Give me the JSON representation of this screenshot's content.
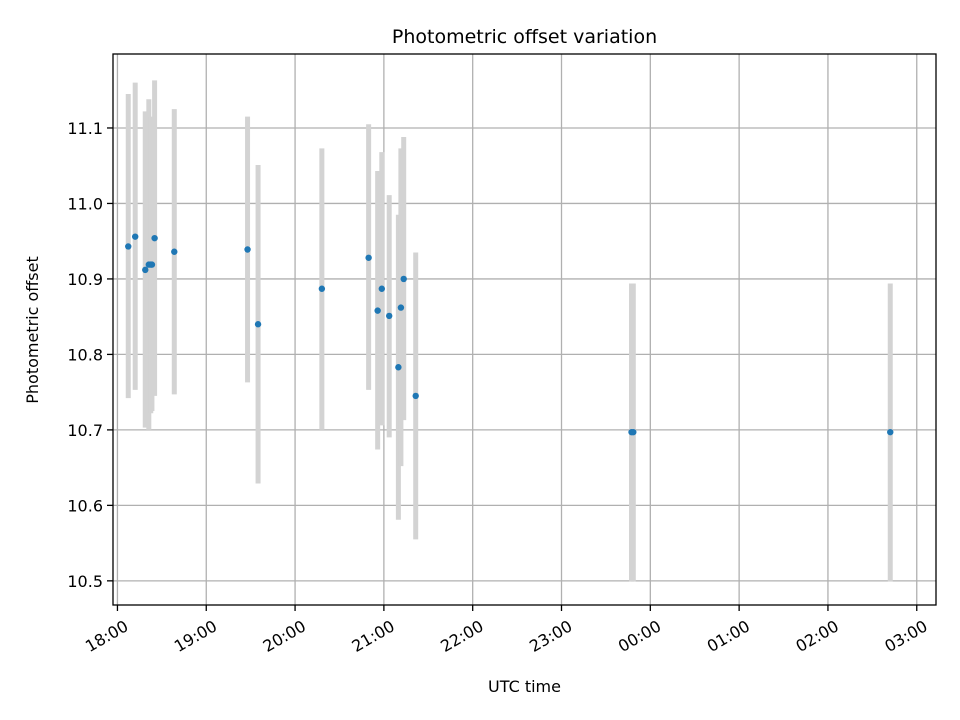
{
  "chart_data": {
    "type": "scatter",
    "title": "Photometric offset variation",
    "xlabel": "UTC time",
    "ylabel": "Photometric offset",
    "grid": true,
    "legend": "none",
    "x_axis_kind": "time",
    "xlim": [
      "18:00",
      "03:00"
    ],
    "xlim_minutes": [
      1077,
      1633
    ],
    "ylim": [
      10.468,
      11.198
    ],
    "x_ticks": [
      "18:00",
      "19:00",
      "20:00",
      "21:00",
      "22:00",
      "23:00",
      "00:00",
      "01:00",
      "02:00",
      "03:00"
    ],
    "x_tick_minutes": [
      1080,
      1140,
      1200,
      1260,
      1320,
      1380,
      1440,
      1500,
      1560,
      1620
    ],
    "y_ticks": [
      "10.5",
      "10.6",
      "10.7",
      "10.8",
      "10.9",
      "11.0",
      "11.1"
    ],
    "y_tick_values": [
      10.5,
      10.6,
      10.7,
      10.8,
      10.9,
      11.0,
      11.1
    ],
    "colors": {
      "point": "#1f77b4",
      "errorbar": "#d3d3d3",
      "grid": "#b0b0b0",
      "axes": "#000000"
    },
    "series": [
      {
        "points": [
          {
            "x": "18:07",
            "x_minutes": 1087.3,
            "y": 10.943,
            "err_low": 10.742,
            "err_high": 11.145
          },
          {
            "x": "18:12",
            "x_minutes": 1092.0,
            "y": 10.956,
            "err_low": 10.753,
            "err_high": 11.16
          },
          {
            "x": "18:19",
            "x_minutes": 1098.8,
            "y": 10.912,
            "err_low": 10.703,
            "err_high": 11.122
          },
          {
            "x": "18:21",
            "x_minutes": 1101.2,
            "y": 10.919,
            "err_low": 10.7,
            "err_high": 11.138
          },
          {
            "x": "18:22",
            "x_minutes": 1102.5,
            "y": 10.919,
            "err_low": 10.722,
            "err_high": 11.115
          },
          {
            "x": "18:23",
            "x_minutes": 1103.3,
            "y": 10.919,
            "err_low": 10.725,
            "err_high": 11.112
          },
          {
            "x": "18:25",
            "x_minutes": 1105.1,
            "y": 10.954,
            "err_low": 10.745,
            "err_high": 11.163
          },
          {
            "x": "18:38",
            "x_minutes": 1118.4,
            "y": 10.936,
            "err_low": 10.747,
            "err_high": 11.125
          },
          {
            "x": "19:28",
            "x_minutes": 1167.9,
            "y": 10.939,
            "err_low": 10.763,
            "err_high": 11.115
          },
          {
            "x": "19:35",
            "x_minutes": 1175.0,
            "y": 10.84,
            "err_low": 10.629,
            "err_high": 11.051
          },
          {
            "x": "20:18",
            "x_minutes": 1218.1,
            "y": 10.887,
            "err_low": 10.7,
            "err_high": 11.073
          },
          {
            "x": "20:50",
            "x_minutes": 1249.7,
            "y": 10.928,
            "err_low": 10.753,
            "err_high": 11.105
          },
          {
            "x": "20:56",
            "x_minutes": 1255.8,
            "y": 10.858,
            "err_low": 10.674,
            "err_high": 11.043
          },
          {
            "x": "20:59",
            "x_minutes": 1258.6,
            "y": 10.887,
            "err_low": 10.706,
            "err_high": 11.068
          },
          {
            "x": "21:04",
            "x_minutes": 1263.6,
            "y": 10.851,
            "err_low": 10.69,
            "err_high": 11.011
          },
          {
            "x": "21:10",
            "x_minutes": 1269.8,
            "y": 10.783,
            "err_low": 10.581,
            "err_high": 10.985
          },
          {
            "x": "21:12",
            "x_minutes": 1271.5,
            "y": 10.862,
            "err_low": 10.652,
            "err_high": 11.073
          },
          {
            "x": "21:13",
            "x_minutes": 1273.4,
            "y": 10.9,
            "err_low": 10.713,
            "err_high": 11.088
          },
          {
            "x": "21:22",
            "x_minutes": 1281.5,
            "y": 10.745,
            "err_low": 10.555,
            "err_high": 10.935
          },
          {
            "x": "23:47",
            "x_minutes": 1427.3,
            "y": 10.697,
            "err_low": 10.499,
            "err_high": 10.894
          },
          {
            "x": "23:48",
            "x_minutes": 1428.5,
            "y": 10.697,
            "err_low": 10.499,
            "err_high": 10.894
          },
          {
            "x": "02:42",
            "x_minutes": 1602.1,
            "y": 10.697,
            "err_low": 10.499,
            "err_high": 10.894
          }
        ]
      }
    ]
  }
}
